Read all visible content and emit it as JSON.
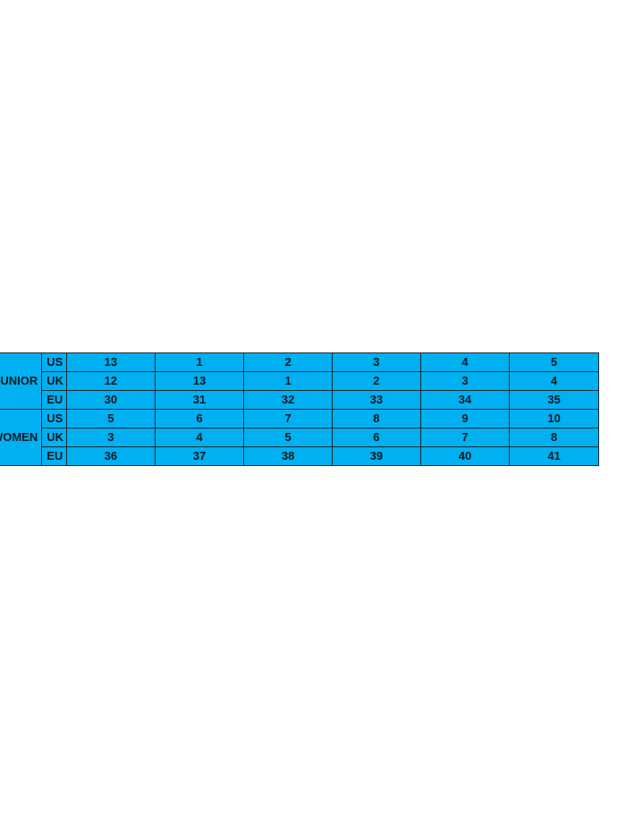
{
  "table": {
    "groups": [
      {
        "label": "JUNIOR",
        "rows": [
          {
            "unit": "US",
            "values": [
              "13",
              "1",
              "2",
              "3",
              "4",
              "5"
            ]
          },
          {
            "unit": "UK",
            "values": [
              "12",
              "13",
              "1",
              "2",
              "3",
              "4"
            ]
          },
          {
            "unit": "EU",
            "values": [
              "30",
              "31",
              "32",
              "33",
              "34",
              "35"
            ]
          }
        ]
      },
      {
        "label": "WOMEN",
        "rows": [
          {
            "unit": "US",
            "values": [
              "5",
              "6",
              "7",
              "8",
              "9",
              "10"
            ]
          },
          {
            "unit": "UK",
            "values": [
              "3",
              "4",
              "5",
              "6",
              "7",
              "8"
            ]
          },
          {
            "unit": "EU",
            "values": [
              "36",
              "37",
              "38",
              "39",
              "40",
              "41"
            ]
          }
        ]
      }
    ],
    "fill_color": "#00b0f0"
  }
}
